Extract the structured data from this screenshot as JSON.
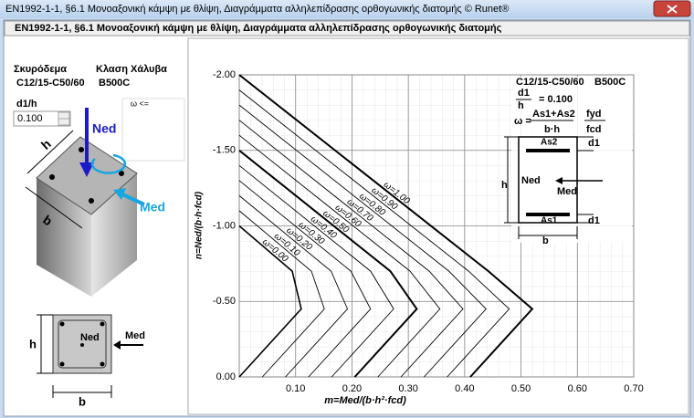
{
  "window": {
    "title": "EN1992-1-1, §6.1  Μονοαξονική κάμψη με θλίψη, Διαγράμματα αλληλεπίδρασης ορθογωνικής διατομής © Runet®"
  },
  "header": {
    "title": "EN1992-1-1, §6.1  Μονοαξονική κάμψη με θλίψη, Διαγράμματα αλληλεπίδρασης ορθογωνικής διατομής"
  },
  "left_panel": {
    "concrete_label": "Σκυρόδεμα",
    "concrete_value": "C12/15-C50/60",
    "steel_label": "Κλαση Χάλυβα",
    "steel_value": "B500C",
    "d1h_label": "d1/h",
    "d1h_value": "0.100",
    "omega_box_label": "ω <=",
    "column_figure": {
      "h": "h",
      "b": "b",
      "ned": "Ned",
      "med": "Med"
    },
    "section_figure": {
      "h": "h",
      "b": "b",
      "ned": "Ned",
      "med": "Med"
    }
  },
  "chart_data": {
    "type": "line",
    "x_label": "m=Med/(b·h²·fcd)",
    "y_label": "n=Ned/(b·h·fcd)",
    "xlim": [
      0,
      0.7
    ],
    "ylim": [
      0,
      -2
    ],
    "xticks": [
      {
        "value": 0.1,
        "label": "0.10"
      },
      {
        "value": 0.2,
        "label": "0.20"
      },
      {
        "value": 0.3,
        "label": "0.30"
      },
      {
        "value": 0.4,
        "label": "0.40"
      },
      {
        "value": 0.5,
        "label": "0.50"
      },
      {
        "value": 0.6,
        "label": "0.60"
      },
      {
        "value": 0.7,
        "label": "0.70"
      }
    ],
    "yticks": [
      {
        "value": 0,
        "label": "0.00"
      },
      {
        "value": -0.5,
        "label": "-0.50"
      },
      {
        "value": -1,
        "label": "-1.00"
      },
      {
        "value": -1.5,
        "label": "-1.50"
      },
      {
        "value": -2,
        "label": "-2.00"
      }
    ],
    "grid": true,
    "series": [
      {
        "name": "ω=0.00",
        "color": "#000000",
        "line_width": 1.6,
        "x": [
          0,
          0.094,
          0.11,
          0
        ],
        "values": [
          -1.0,
          -0.7,
          -0.45,
          0
        ]
      },
      {
        "name": "ω=0.10",
        "color": "#000000",
        "line_width": 0.9,
        "x": [
          0,
          0.128,
          0.151,
          0.041
        ],
        "values": [
          -1.1,
          -0.7,
          -0.45,
          0
        ]
      },
      {
        "name": "ω=0.20",
        "color": "#000000",
        "line_width": 0.9,
        "x": [
          0,
          0.163,
          0.192,
          0.082
        ],
        "values": [
          -1.2,
          -0.7,
          -0.45,
          0
        ]
      },
      {
        "name": "ω=0.30",
        "color": "#000000",
        "line_width": 0.9,
        "x": [
          0,
          0.198,
          0.233,
          0.123
        ],
        "values": [
          -1.3,
          -0.7,
          -0.45,
          0
        ]
      },
      {
        "name": "ω=0.40",
        "color": "#000000",
        "line_width": 0.9,
        "x": [
          0,
          0.233,
          0.274,
          0.164
        ],
        "values": [
          -1.4,
          -0.7,
          -0.45,
          0
        ]
      },
      {
        "name": "ω=0.50",
        "color": "#000000",
        "line_width": 2,
        "x": [
          0,
          0.268,
          0.315,
          0.205
        ],
        "values": [
          -1.5,
          -0.7,
          -0.45,
          0
        ]
      },
      {
        "name": "ω=0.60",
        "color": "#000000",
        "line_width": 0.9,
        "x": [
          0,
          0.303,
          0.356,
          0.246
        ],
        "values": [
          -1.6,
          -0.7,
          -0.45,
          0
        ]
      },
      {
        "name": "ω=0.70",
        "color": "#000000",
        "line_width": 0.9,
        "x": [
          0,
          0.337,
          0.397,
          0.287
        ],
        "values": [
          -1.7,
          -0.7,
          -0.45,
          0
        ]
      },
      {
        "name": "ω=0.80",
        "color": "#000000",
        "line_width": 0.9,
        "x": [
          0,
          0.372,
          0.438,
          0.328
        ],
        "values": [
          -1.8,
          -0.7,
          -0.45,
          0
        ]
      },
      {
        "name": "ω=0.90",
        "color": "#000000",
        "line_width": 0.9,
        "x": [
          0,
          0.407,
          0.479,
          0.369
        ],
        "values": [
          -1.9,
          -0.7,
          -0.45,
          0
        ]
      },
      {
        "name": "ω=1.00",
        "color": "#000000",
        "line_width": 2,
        "x": [
          0,
          0.442,
          0.52,
          0.41
        ],
        "values": [
          -2.0,
          -0.7,
          -0.45,
          0
        ]
      }
    ],
    "inset": {
      "concrete": "C12/15-C50/60",
      "steel": "B500C",
      "d1": "d1",
      "h": "h",
      "ratio": "= 0.100",
      "omega": "ω =",
      "as_sum": "As1+As2",
      "bh": "b·h",
      "fyd": "fyd",
      "fcd": "fcd",
      "as2": "As2",
      "as1": "As1",
      "d1_top": "d1",
      "d1_bottom": "d1",
      "h_dim": "h",
      "b_dim": "b",
      "ned": "Ned",
      "med": "Med"
    }
  }
}
